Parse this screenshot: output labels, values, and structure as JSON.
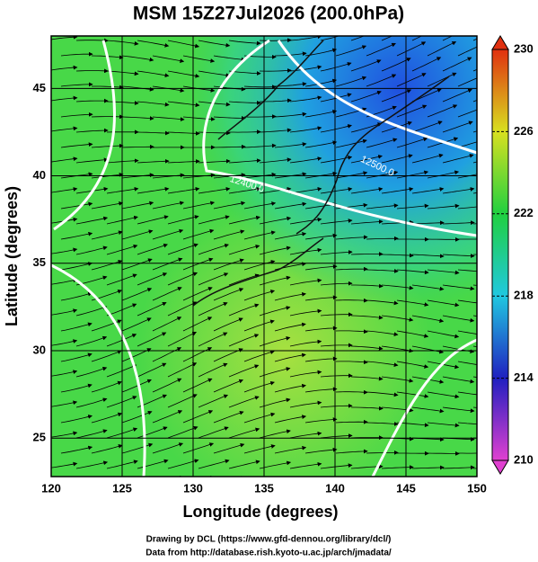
{
  "title": "MSM 15Z27Jul2026 (200.0hPa)",
  "x_axis": {
    "label": "Longitude (degrees)",
    "ticks": [
      120,
      125,
      130,
      135,
      140,
      145,
      150
    ],
    "range": [
      120,
      150
    ]
  },
  "y_axis": {
    "label": "Latitude  (degrees)",
    "ticks": [
      25,
      30,
      35,
      40,
      45
    ],
    "range": [
      22.8,
      48
    ]
  },
  "colorbar": {
    "ticks": [
      210,
      214,
      218,
      222,
      226,
      230
    ],
    "range": [
      210,
      230
    ]
  },
  "contour_labels": [
    "12400.0",
    "12500.0"
  ],
  "credits": [
    "Drawing by DCL (https://www.gfd-dennou.org/library/dcl/)",
    "Data from http://database.rish.kyoto-u.ac.jp/arch/jmadata/"
  ]
}
